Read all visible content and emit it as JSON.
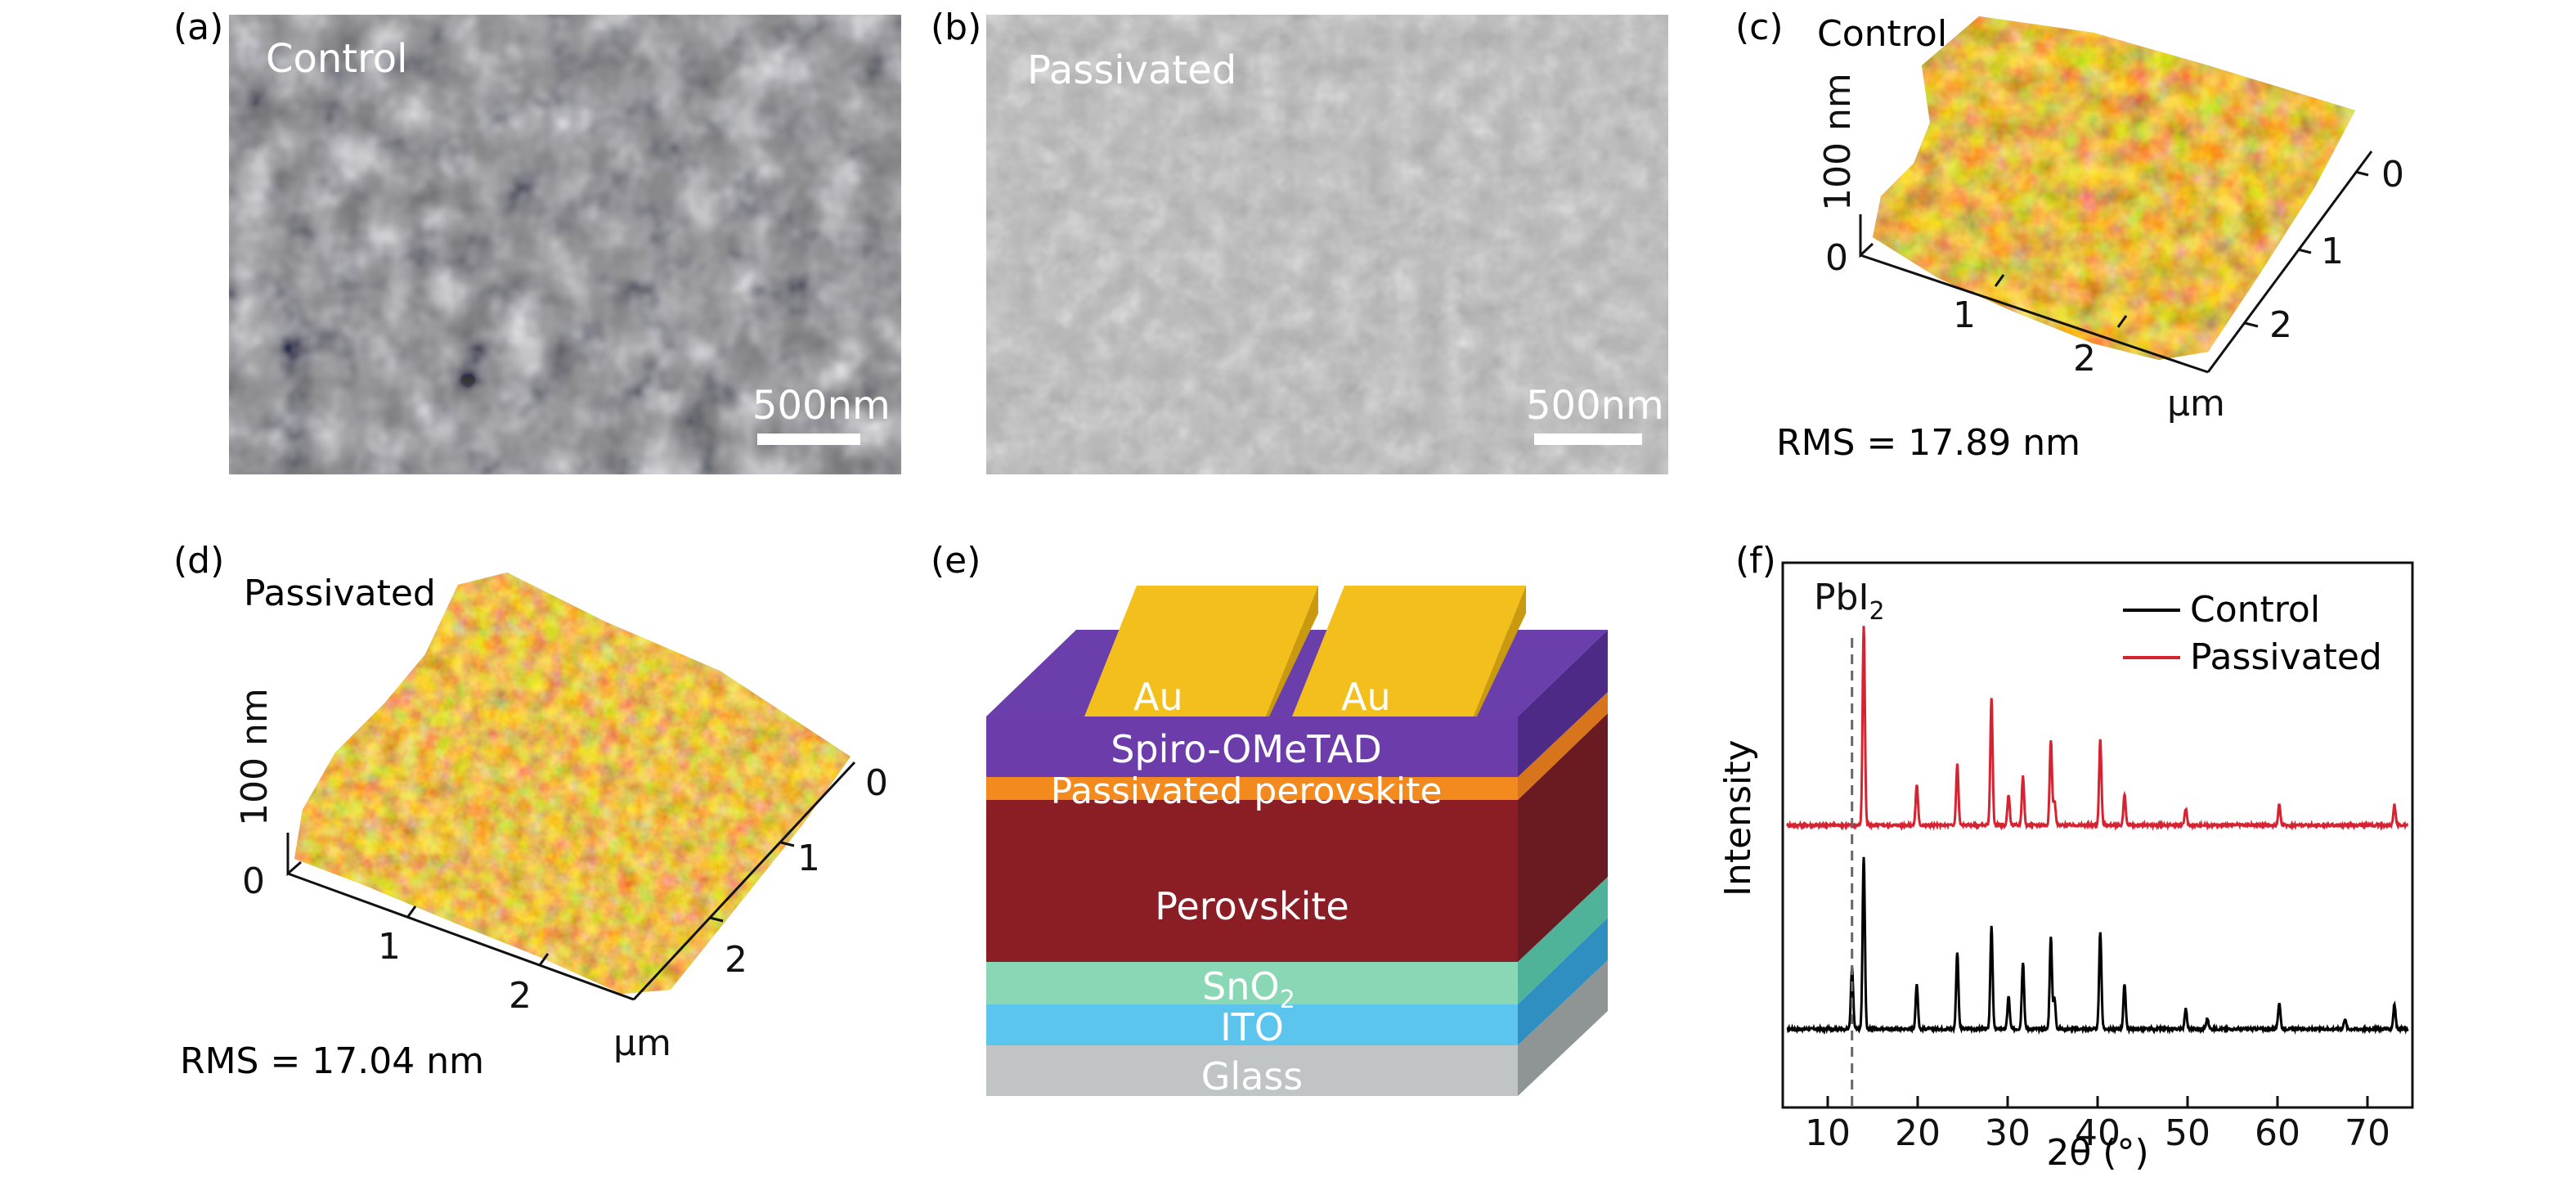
{
  "panels": {
    "a": {
      "tag": "(a)",
      "label": "Control",
      "scalebar": "500nm"
    },
    "b": {
      "tag": "(b)",
      "label": "Passivated",
      "scalebar": "500nm"
    },
    "c": {
      "tag": "(c)",
      "label": "Control",
      "z_label": "100 nm",
      "z_zero": "0",
      "x_ticks": [
        "1",
        "2"
      ],
      "y_ticks": [
        "0",
        "1",
        "2"
      ],
      "unit": "µm",
      "rms": "RMS  = 17.89 nm"
    },
    "d": {
      "tag": "(d)",
      "label": "Passivated",
      "z_label": "100 nm",
      "z_zero": "0",
      "x_ticks": [
        "1",
        "2"
      ],
      "y_ticks": [
        "0",
        "1",
        "2"
      ],
      "unit": "µm",
      "rms": "RMS  = 17.04 nm"
    },
    "e": {
      "tag": "(e)",
      "layers": {
        "au1": "Au",
        "au2": "Au",
        "spiro": "Spiro-OMeTAD",
        "passivated": "Passivated perovskite",
        "perovskite": "Perovskite",
        "sno2_base": "SnO",
        "sno2_sub": "2",
        "ito": "ITO",
        "glass": "Glass"
      }
    },
    "f": {
      "tag": "(f)"
    }
  },
  "chart_data": {
    "type": "line",
    "xlabel_theta": "2θ (°)",
    "ylabel": "Intensity",
    "xlim": [
      5,
      75
    ],
    "x_ticks": [
      10,
      20,
      30,
      40,
      50,
      60,
      70
    ],
    "annotation": {
      "text_base": "PbI",
      "text_sub": "2",
      "x": 12.7
    },
    "legend_position": "top-right",
    "series": [
      {
        "name": "Control",
        "color": "#000000",
        "baseline": 0,
        "peaks": [
          {
            "x": 12.7,
            "h": 0.3
          },
          {
            "x": 14.0,
            "h": 0.85
          },
          {
            "x": 19.9,
            "h": 0.22
          },
          {
            "x": 24.4,
            "h": 0.38
          },
          {
            "x": 28.2,
            "h": 0.5
          },
          {
            "x": 30.1,
            "h": 0.16
          },
          {
            "x": 31.7,
            "h": 0.33
          },
          {
            "x": 34.8,
            "h": 0.45
          },
          {
            "x": 35.2,
            "h": 0.15
          },
          {
            "x": 40.3,
            "h": 0.48
          },
          {
            "x": 43.0,
            "h": 0.22
          },
          {
            "x": 49.8,
            "h": 0.1
          },
          {
            "x": 52.2,
            "h": 0.05
          },
          {
            "x": 60.2,
            "h": 0.13
          },
          {
            "x": 67.5,
            "h": 0.05
          },
          {
            "x": 73.0,
            "h": 0.12
          }
        ]
      },
      {
        "name": "Passivated",
        "color": "#d62332",
        "baseline": 1.0,
        "peaks": [
          {
            "x": 14.0,
            "h": 0.98
          },
          {
            "x": 19.9,
            "h": 0.2
          },
          {
            "x": 24.4,
            "h": 0.3
          },
          {
            "x": 28.2,
            "h": 0.62
          },
          {
            "x": 30.1,
            "h": 0.15
          },
          {
            "x": 31.7,
            "h": 0.24
          },
          {
            "x": 34.8,
            "h": 0.42
          },
          {
            "x": 35.2,
            "h": 0.12
          },
          {
            "x": 40.3,
            "h": 0.42
          },
          {
            "x": 43.0,
            "h": 0.15
          },
          {
            "x": 49.8,
            "h": 0.08
          },
          {
            "x": 60.2,
            "h": 0.1
          },
          {
            "x": 73.0,
            "h": 0.1
          }
        ]
      }
    ]
  }
}
